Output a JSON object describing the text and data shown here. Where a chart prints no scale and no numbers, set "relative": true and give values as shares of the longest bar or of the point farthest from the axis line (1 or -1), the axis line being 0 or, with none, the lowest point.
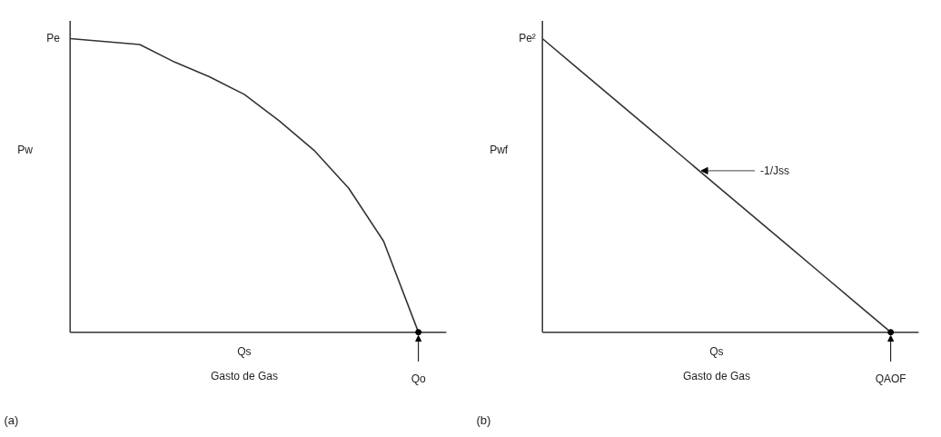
{
  "chart_data": [
    {
      "type": "line",
      "relative": true,
      "ylabel": "Pw",
      "xlabel": "Gasto de Gas",
      "categories": [
        null,
        null,
        null,
        null,
        null,
        null,
        null,
        null,
        null,
        null,
        null
      ],
      "series": [
        {
          "color": "#333333",
          "values": [
            1,
            0.99,
            0.98,
            0.92,
            0.87,
            0.81,
            0.72,
            0.62,
            0.49,
            0.31,
            0
          ]
        }
      ],
      "annotations": [
        "Pe",
        "Qo",
        "Qs",
        "(a)"
      ]
    },
    {
      "type": "line",
      "relative": true,
      "ylabel": "Pwf",
      "xlabel": "Gasto de Gas",
      "categories": [
        null,
        null,
        null,
        null,
        null,
        null,
        null,
        null,
        null,
        null,
        null
      ],
      "series": [
        {
          "color": "#333333",
          "values": [
            1,
            0.9,
            0.8,
            0.7,
            0.6,
            0.5,
            0.4,
            0.3,
            0.2,
            0.1,
            0
          ]
        }
      ],
      "annotations": [
        "Pe²",
        "-1/Jss",
        "QAOF",
        "Qs",
        "(b)"
      ]
    }
  ]
}
